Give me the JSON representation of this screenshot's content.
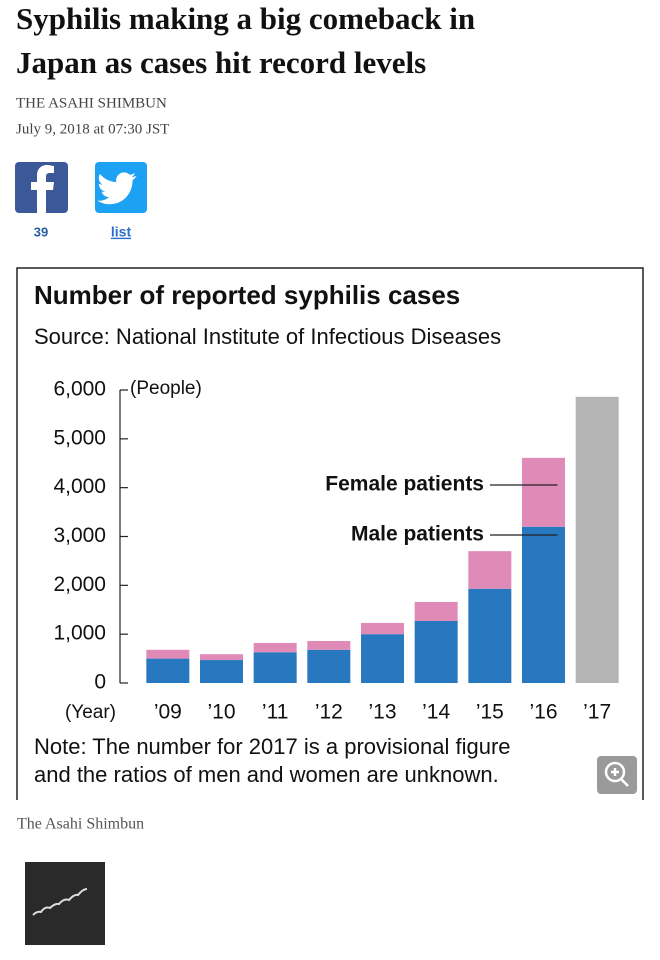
{
  "article": {
    "title_lines": [
      "Syphilis making a big comeback in",
      "Japan as cases hit record levels"
    ],
    "source": "THE ASAHI SHIMBUN",
    "date": "July 9, 2018 at 07:30 JST",
    "share_count": "39",
    "share_link": "list",
    "caption": "The Asahi Shimbun"
  },
  "chart_data": {
    "type": "stacked-bar",
    "title": "Number of reported syphilis cases",
    "subtitle": "Source: National Institute of Infectious Diseases",
    "y_unit": "(People)",
    "x_unit": "(Year)",
    "note_lines": [
      "Note: The number for 2017 is a provisional figure",
      "and the ratios of men and women are unknown."
    ],
    "categories": [
      "’09",
      "’10",
      "’11",
      "’12",
      "’13",
      "’14",
      "’15",
      "’16",
      "’17"
    ],
    "series": [
      {
        "name": "Male patients",
        "color": "#2878c0",
        "values": [
          500,
          470,
          630,
          680,
          1000,
          1270,
          1930,
          3200,
          null
        ]
      },
      {
        "name": "Female patients",
        "color": "#e08ab8",
        "values": [
          180,
          120,
          190,
          180,
          230,
          390,
          770,
          1410,
          null
        ]
      },
      {
        "color": "#b4b4b4",
        "values": [
          null,
          null,
          null,
          null,
          null,
          null,
          null,
          null,
          5860
        ]
      }
    ],
    "ylim": [
      0,
      6000
    ],
    "yticks": [
      0,
      {
        "value": 1000,
        "label": "1,000"
      },
      {
        "value": 2000,
        "label": "2,000"
      },
      {
        "value": 3000,
        "label": "3,000"
      },
      {
        "value": 4000,
        "label": "4,000"
      },
      {
        "value": 5000,
        "label": "5,000"
      },
      {
        "value": 6000,
        "label": "6,000"
      }
    ]
  }
}
